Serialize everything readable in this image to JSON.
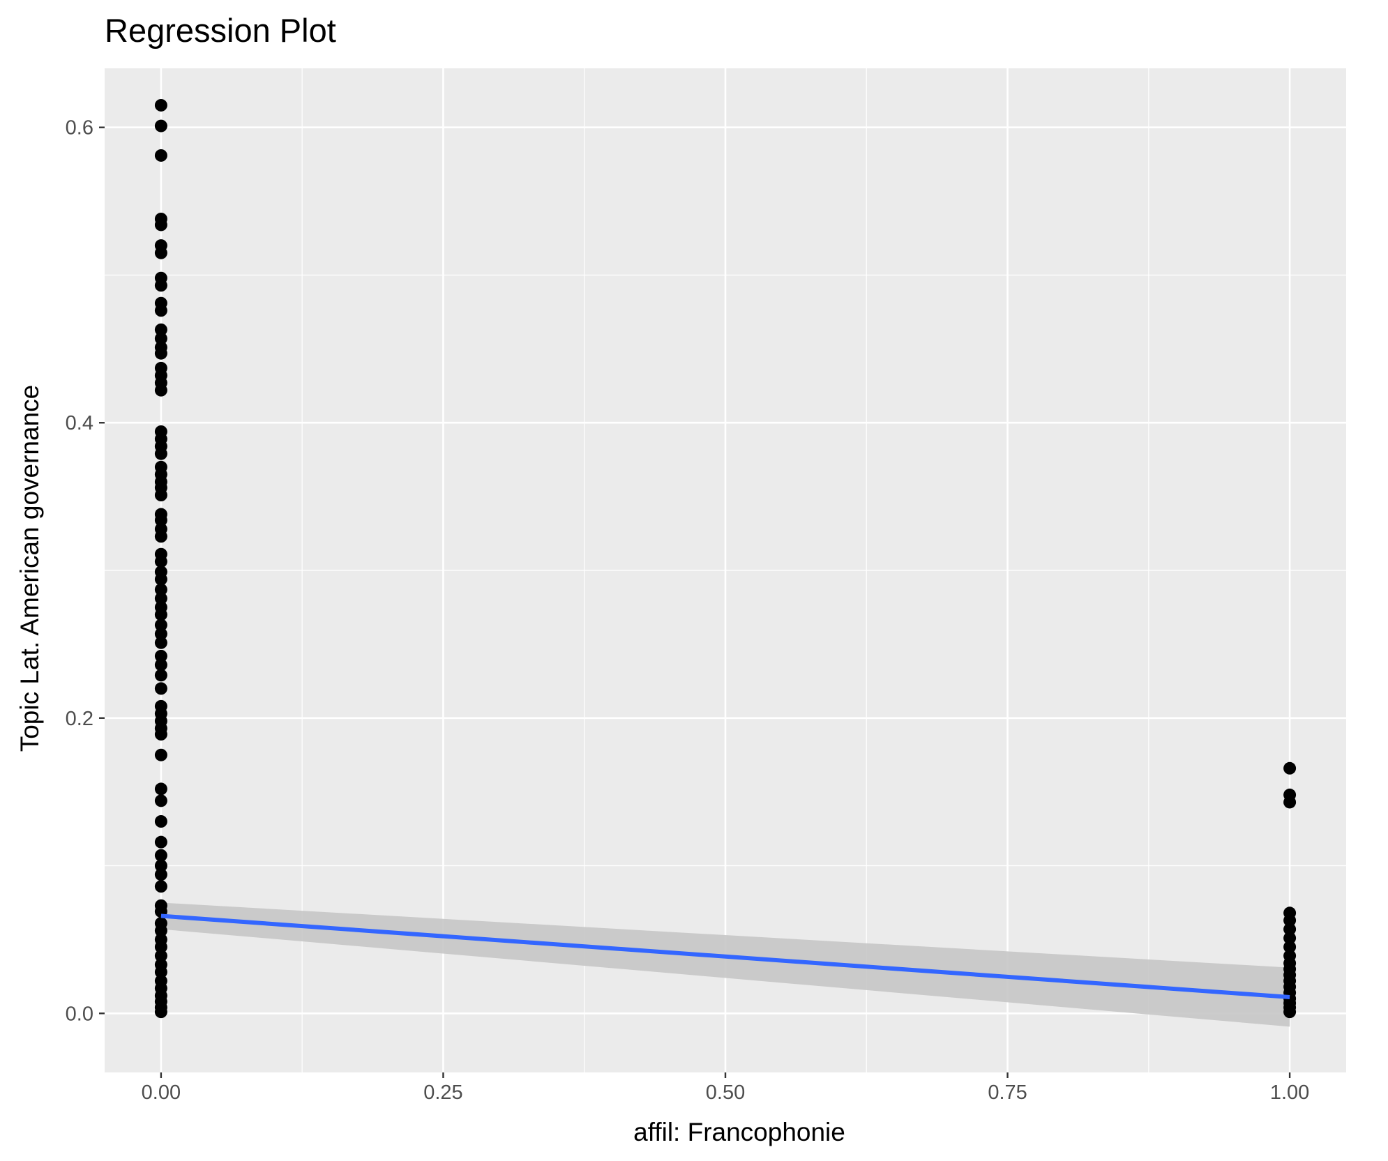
{
  "chart_data": {
    "type": "scatter",
    "title": "Regression Plot",
    "xlabel": "affil: Francophonie",
    "ylabel": "Topic Lat. American governance",
    "xlim": [
      -0.05,
      1.05
    ],
    "ylim": [
      -0.04,
      0.64
    ],
    "x_ticks": [
      0.0,
      0.25,
      0.5,
      0.75,
      1.0
    ],
    "x_tick_labels": [
      "0.00",
      "0.25",
      "0.50",
      "0.75",
      "1.00"
    ],
    "y_ticks": [
      0.0,
      0.2,
      0.4,
      0.6
    ],
    "y_tick_labels": [
      "0.0",
      "0.2",
      "0.4",
      "0.6"
    ],
    "grid": true,
    "legend": "none",
    "colors": {
      "panel_background": "#ebebeb",
      "grid": "#ffffff",
      "points": "#000000",
      "regression_line": "#3366ff",
      "confidence_band": "#c6c6c6"
    },
    "series": [
      {
        "type": "scatter",
        "points": [
          [
            0,
            0.615
          ],
          [
            0,
            0.601
          ],
          [
            0,
            0.581
          ],
          [
            0,
            0.538
          ],
          [
            0,
            0.534
          ],
          [
            0,
            0.52
          ],
          [
            0,
            0.515
          ],
          [
            0,
            0.498
          ],
          [
            0,
            0.493
          ],
          [
            0,
            0.481
          ],
          [
            0,
            0.476
          ],
          [
            0,
            0.463
          ],
          [
            0,
            0.457
          ],
          [
            0,
            0.451
          ],
          [
            0,
            0.447
          ],
          [
            0,
            0.437
          ],
          [
            0,
            0.432
          ],
          [
            0,
            0.427
          ],
          [
            0,
            0.422
          ],
          [
            0,
            0.394
          ],
          [
            0,
            0.389
          ],
          [
            0,
            0.384
          ],
          [
            0,
            0.379
          ],
          [
            0,
            0.37
          ],
          [
            0,
            0.365
          ],
          [
            0,
            0.36
          ],
          [
            0,
            0.356
          ],
          [
            0,
            0.351
          ],
          [
            0,
            0.338
          ],
          [
            0,
            0.334
          ],
          [
            0,
            0.328
          ],
          [
            0,
            0.323
          ],
          [
            0,
            0.311
          ],
          [
            0,
            0.306
          ],
          [
            0,
            0.299
          ],
          [
            0,
            0.294
          ],
          [
            0,
            0.287
          ],
          [
            0,
            0.281
          ],
          [
            0,
            0.275
          ],
          [
            0,
            0.27
          ],
          [
            0,
            0.263
          ],
          [
            0,
            0.257
          ],
          [
            0,
            0.251
          ],
          [
            0,
            0.242
          ],
          [
            0,
            0.236
          ],
          [
            0,
            0.229
          ],
          [
            0,
            0.22
          ],
          [
            0,
            0.208
          ],
          [
            0,
            0.203
          ],
          [
            0,
            0.198
          ],
          [
            0,
            0.193
          ],
          [
            0,
            0.189
          ],
          [
            0,
            0.175
          ],
          [
            0,
            0.152
          ],
          [
            0,
            0.144
          ],
          [
            0,
            0.13
          ],
          [
            0,
            0.116
          ],
          [
            0,
            0.107
          ],
          [
            0,
            0.1
          ],
          [
            0,
            0.094
          ],
          [
            0,
            0.086
          ],
          [
            0,
            0.073
          ],
          [
            0,
            0.069
          ],
          [
            0,
            0.061
          ],
          [
            0,
            0.056
          ],
          [
            0,
            0.05
          ],
          [
            0,
            0.045
          ],
          [
            0,
            0.039
          ],
          [
            0,
            0.033
          ],
          [
            0,
            0.028
          ],
          [
            0,
            0.022
          ],
          [
            0,
            0.017
          ],
          [
            0,
            0.012
          ],
          [
            0,
            0.008
          ],
          [
            0,
            0.004
          ],
          [
            0,
            0.001
          ],
          [
            1,
            0.166
          ],
          [
            1,
            0.148
          ],
          [
            1,
            0.143
          ],
          [
            1,
            0.068
          ],
          [
            1,
            0.063
          ],
          [
            1,
            0.057
          ],
          [
            1,
            0.051
          ],
          [
            1,
            0.045
          ],
          [
            1,
            0.039
          ],
          [
            1,
            0.034
          ],
          [
            1,
            0.03
          ],
          [
            1,
            0.026
          ],
          [
            1,
            0.022
          ],
          [
            1,
            0.018
          ],
          [
            1,
            0.014
          ],
          [
            1,
            0.01
          ],
          [
            1,
            0.007
          ],
          [
            1,
            0.004
          ],
          [
            1,
            0.001
          ]
        ]
      },
      {
        "type": "line",
        "method": "linear regression",
        "x": [
          0,
          1
        ],
        "y": [
          0.066,
          0.011
        ],
        "ci_lower": [
          0.057,
          -0.009
        ],
        "ci_upper": [
          0.075,
          0.031
        ]
      }
    ]
  }
}
